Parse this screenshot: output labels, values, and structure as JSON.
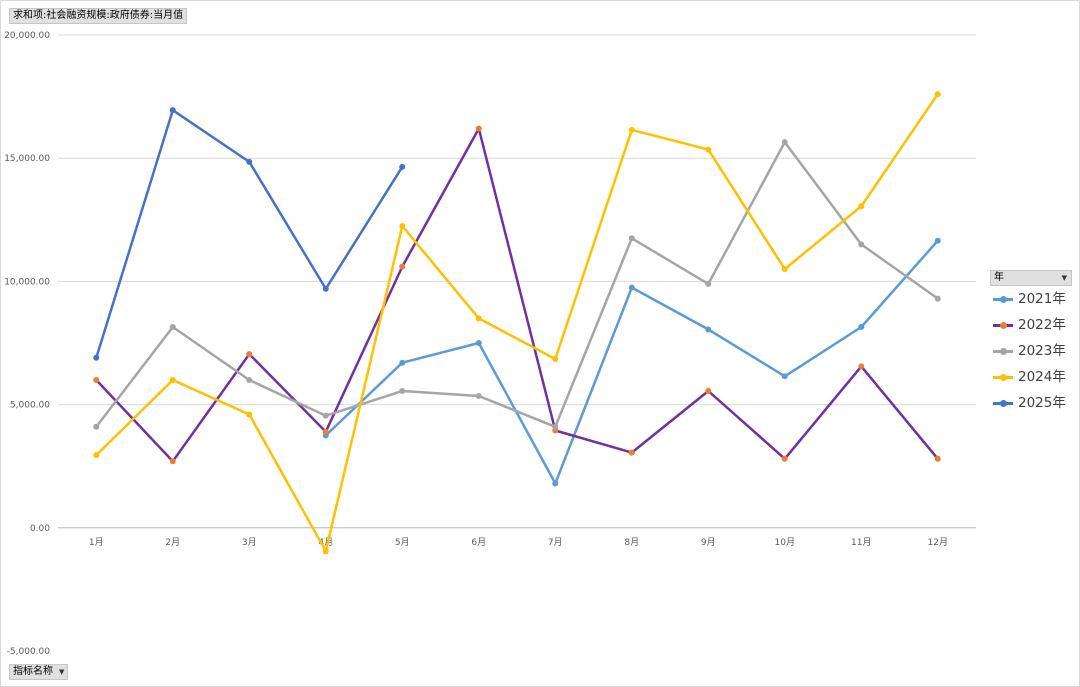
{
  "pivot": {
    "value_field": "求和项:社会融资规模:政府债券:当月值",
    "row_field": "指标名称",
    "legend_field": "年"
  },
  "colors": {
    "2021年": "#5b9bd5",
    "2022年": "#7030a0",
    "2023年": "#a5a5a5",
    "2024年": "#ffc000",
    "2025年": "#4472c4",
    "marker_2022": "#ed7d31"
  },
  "chart_data": {
    "type": "line",
    "title": "",
    "xlabel": "",
    "ylabel": "",
    "categories": [
      "1月",
      "2月",
      "3月",
      "4月",
      "5月",
      "6月",
      "7月",
      "8月",
      "9月",
      "10月",
      "11月",
      "12月"
    ],
    "yticks": [
      "20,000.00",
      "15,000.00",
      "10,000.00",
      "5,000.00",
      "0.00",
      "-5,000.00"
    ],
    "ylim": [
      -5000,
      20000
    ],
    "grid": true,
    "legend_position": "right",
    "series": [
      {
        "name": "2021年",
        "values": [
          null,
          null,
          null,
          3750,
          6700,
          7500,
          1800,
          9750,
          8050,
          6150,
          8150,
          11650
        ]
      },
      {
        "name": "2022年",
        "values": [
          6000,
          2700,
          7050,
          3900,
          10600,
          16200,
          3950,
          3050,
          5550,
          2800,
          6550,
          2800
        ]
      },
      {
        "name": "2023年",
        "values": [
          4100,
          8150,
          6000,
          4550,
          5550,
          5350,
          4100,
          11750,
          9900,
          15650,
          11500,
          9300
        ]
      },
      {
        "name": "2024年",
        "values": [
          2950,
          6000,
          4600,
          -950,
          12250,
          8500,
          6850,
          16150,
          15350,
          10500,
          13050,
          17600
        ]
      },
      {
        "name": "2025年",
        "values": [
          6900,
          16950,
          14850,
          9700,
          14650,
          null,
          null,
          null,
          null,
          null,
          null,
          null
        ]
      }
    ]
  }
}
